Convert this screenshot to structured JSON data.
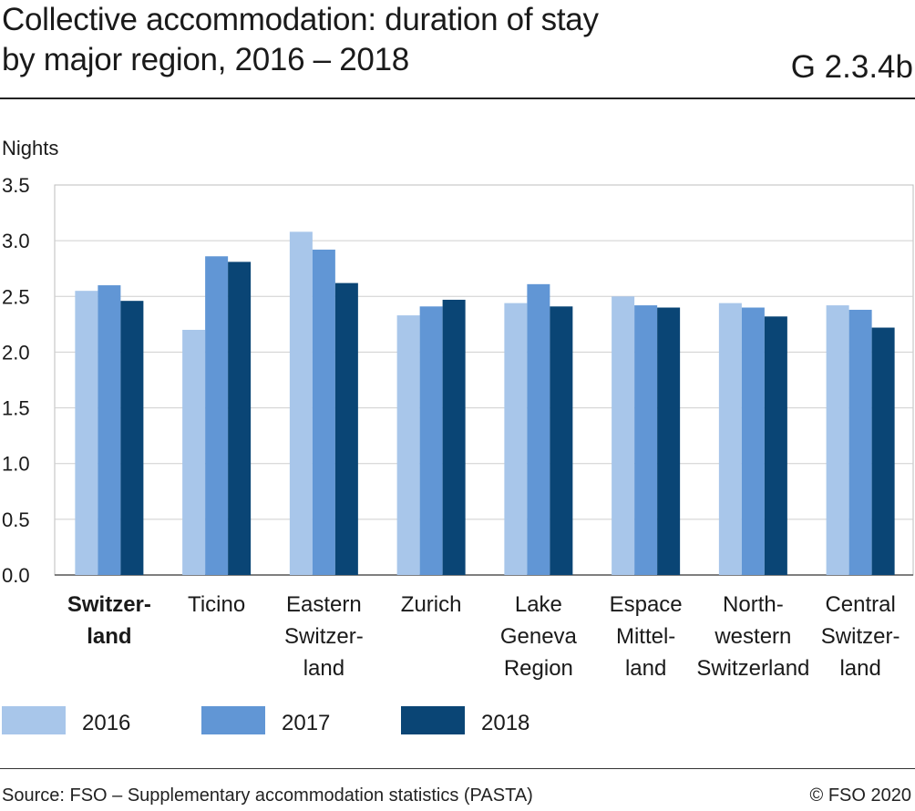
{
  "header": {
    "title_line1": "Collective accommodation: duration of stay",
    "title_line2": "by major region, 2016 – 2018",
    "figure_id": "G 2.3.4b"
  },
  "footer": {
    "source": "Source: FSO – Supplementary accommodation statistics (PASTA)",
    "copyright": "© FSO 2020"
  },
  "chart_data": {
    "type": "bar",
    "ylabel": "Nights",
    "ylim": [
      0,
      3.5
    ],
    "yticks": [
      "0.0",
      "0.5",
      "1.0",
      "1.5",
      "2.0",
      "2.5",
      "3.0",
      "3.5"
    ],
    "grid": true,
    "legend_position": "bottom",
    "categories": [
      {
        "lines": [
          "Switzer-",
          "land"
        ],
        "bold": true
      },
      {
        "lines": [
          "Ticino"
        ],
        "bold": false
      },
      {
        "lines": [
          "Eastern",
          "Switzer-",
          "land"
        ],
        "bold": false
      },
      {
        "lines": [
          "Zurich"
        ],
        "bold": false
      },
      {
        "lines": [
          "Lake",
          "Geneva",
          "Region"
        ],
        "bold": false
      },
      {
        "lines": [
          "Espace",
          "Mittel-",
          "land"
        ],
        "bold": false
      },
      {
        "lines": [
          "North-",
          "western",
          "Switzerland"
        ],
        "bold": false
      },
      {
        "lines": [
          "Central",
          "Switzer-",
          "land"
        ],
        "bold": false
      }
    ],
    "series": [
      {
        "name": "2016",
        "color": "#a8c6ea",
        "values": [
          2.55,
          2.2,
          3.08,
          2.33,
          2.44,
          2.5,
          2.44,
          2.42
        ]
      },
      {
        "name": "2017",
        "color": "#6196d5",
        "values": [
          2.6,
          2.86,
          2.92,
          2.41,
          2.61,
          2.42,
          2.4,
          2.38
        ]
      },
      {
        "name": "2018",
        "color": "#0a4575",
        "values": [
          2.46,
          2.81,
          2.62,
          2.47,
          2.41,
          2.4,
          2.32,
          2.22
        ]
      }
    ]
  }
}
